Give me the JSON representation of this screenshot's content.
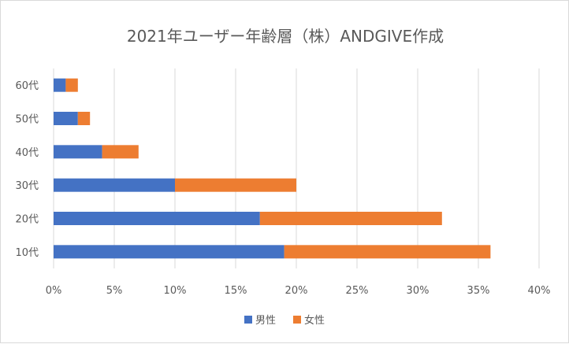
{
  "chart_data": {
    "type": "bar",
    "orientation": "horizontal",
    "stacked": true,
    "title": "2021年ユーザー年齢層（株）ANDGIVE作成",
    "categories": [
      "10代",
      "20代",
      "30代",
      "40代",
      "50代",
      "60代"
    ],
    "series": [
      {
        "name": "男性",
        "color": "#4472C4",
        "values": [
          19,
          17,
          10,
          4,
          2,
          1
        ]
      },
      {
        "name": "女性",
        "color": "#ED7D31",
        "values": [
          17,
          15,
          10,
          3,
          1,
          1
        ]
      }
    ],
    "xlim": [
      0,
      40
    ],
    "xticks": [
      "0%",
      "5%",
      "10%",
      "15%",
      "20%",
      "25%",
      "30%",
      "35%",
      "40%"
    ],
    "xlabel": "",
    "ylabel": "",
    "grid": true,
    "legend_position": "bottom"
  }
}
